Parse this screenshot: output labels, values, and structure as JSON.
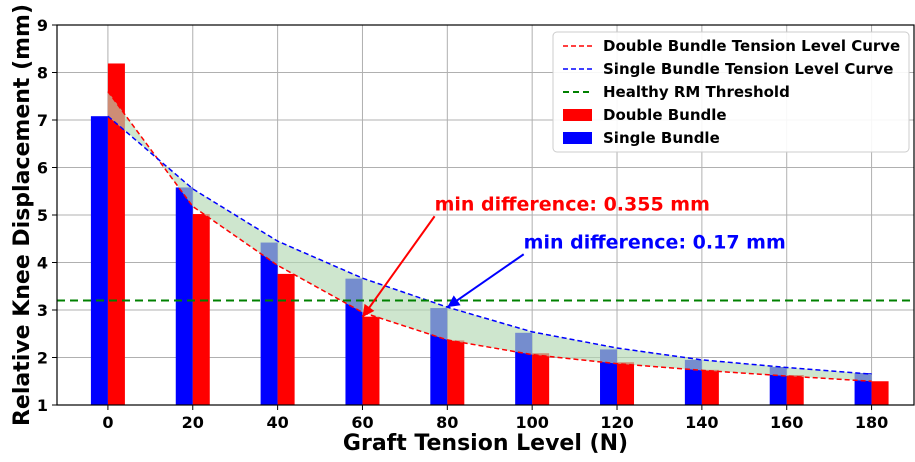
{
  "chart_data": {
    "type": "bar",
    "xlabel": "Graft Tension Level (N)",
    "ylabel": "Relative Knee Displacement (mm)",
    "x": [
      0,
      20,
      40,
      60,
      80,
      100,
      120,
      140,
      160,
      180
    ],
    "xlim": [
      -12,
      190
    ],
    "ylim": [
      1,
      9
    ],
    "yticks": [
      1,
      2,
      3,
      4,
      5,
      6,
      7,
      8,
      9
    ],
    "grid": true,
    "legend_position": "top-right",
    "series": [
      {
        "name": "Single Bundle",
        "kind": "bar",
        "color": "#0000ff",
        "values": [
          7.08,
          5.58,
          4.42,
          3.66,
          3.04,
          2.52,
          2.17,
          1.95,
          1.8,
          1.67
        ]
      },
      {
        "name": "Double Bundle",
        "kind": "bar",
        "color": "#ff0000",
        "values": [
          8.19,
          5.02,
          3.76,
          2.86,
          2.36,
          2.09,
          1.9,
          1.74,
          1.63,
          1.5
        ]
      },
      {
        "name": "Double Bundle Tension Level Curve",
        "kind": "dashed-line",
        "color": "#ff0000",
        "values": [
          7.6,
          5.18,
          3.94,
          2.95,
          2.37,
          2.06,
          1.87,
          1.73,
          1.61,
          1.5
        ]
      },
      {
        "name": "Single Bundle Tension Level Curve",
        "kind": "dashed-line",
        "color": "#0000ff",
        "values": [
          7.08,
          5.55,
          4.45,
          3.67,
          3.06,
          2.54,
          2.2,
          1.95,
          1.79,
          1.65
        ]
      },
      {
        "name": "Healthy RM Threshold",
        "kind": "hline",
        "color": "#008000",
        "value": 3.2
      }
    ],
    "fill_between_color": "#b3d9b3",
    "annotations": [
      {
        "text": "min difference: 0.355 mm",
        "color": "#ff0000",
        "text_at": [
          77,
          5.1
        ],
        "arrow_to": [
          60,
          2.85
        ]
      },
      {
        "text": "min difference: 0.17 mm",
        "color": "#0000ff",
        "text_at": [
          98,
          4.3
        ],
        "arrow_to": [
          80,
          3.06
        ]
      }
    ]
  }
}
